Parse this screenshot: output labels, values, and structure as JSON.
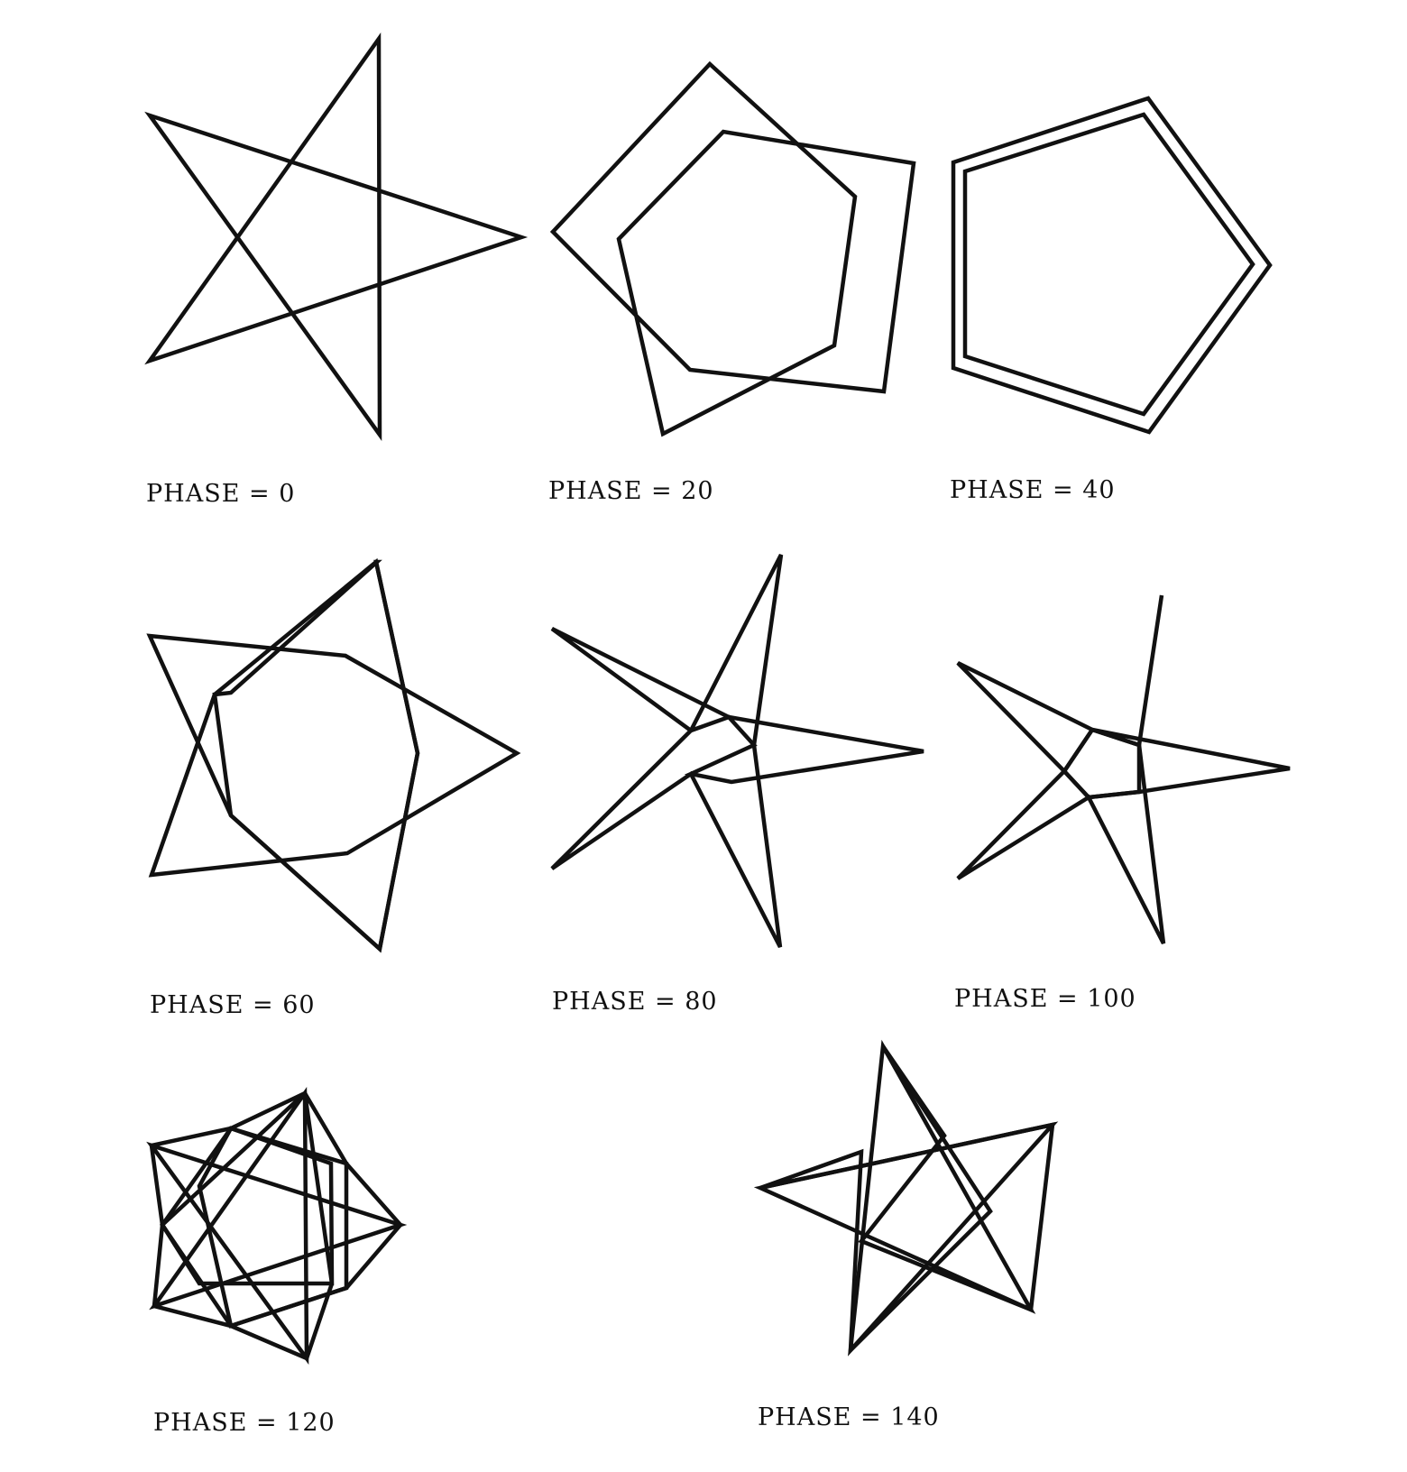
{
  "panels": [
    {
      "id": "phase-0",
      "label": "PHASE = 0",
      "phase": 0
    },
    {
      "id": "phase-20",
      "label": "PHASE = 20",
      "phase": 20
    },
    {
      "id": "phase-40",
      "label": "PHASE = 40",
      "phase": 40
    },
    {
      "id": "phase-60",
      "label": "PHASE = 60",
      "phase": 60
    },
    {
      "id": "phase-80",
      "label": "PHASE = 80",
      "phase": 80
    },
    {
      "id": "phase-100",
      "label": "PHASE = 100",
      "phase": 100
    },
    {
      "id": "phase-120",
      "label": "PHASE = 120",
      "phase": 120
    },
    {
      "id": "phase-140",
      "label": "PHASE = 140",
      "phase": 140
    }
  ],
  "colors": {
    "ink": "#111111",
    "background": "#ffffff"
  }
}
